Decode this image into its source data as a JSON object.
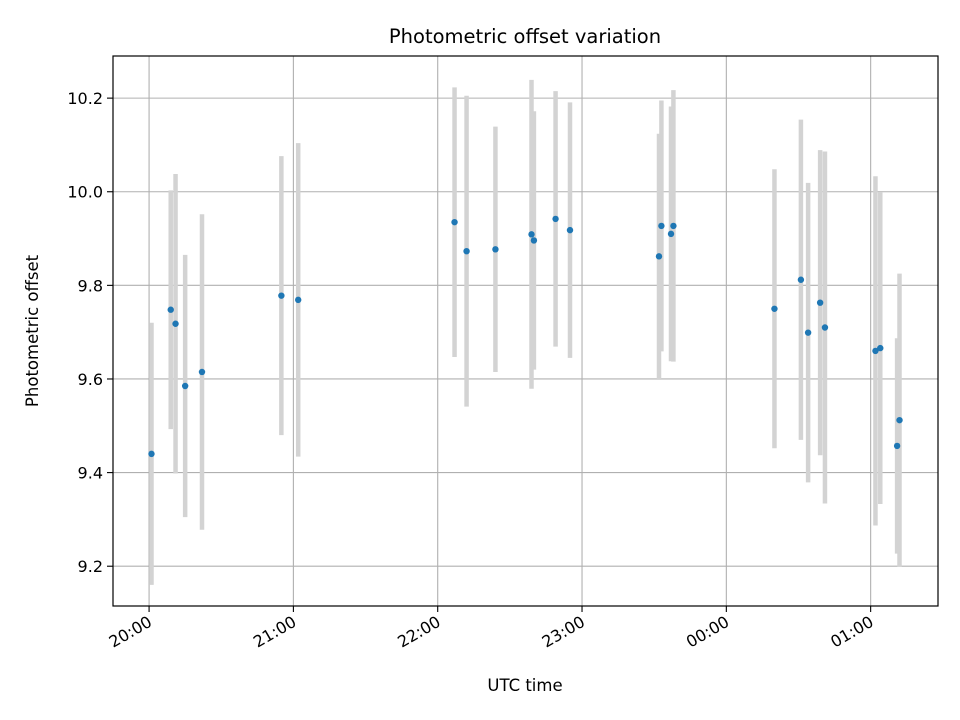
{
  "chart_data": {
    "type": "scatter",
    "title": "Photometric offset variation",
    "xlabel": "UTC time",
    "ylabel": "Photometric offset",
    "x_axis_kind": "time",
    "x_ticks": [
      "20:00",
      "21:00",
      "22:00",
      "23:00",
      "00:00",
      "01:00"
    ],
    "xlim": [
      "19:45",
      "01:28"
    ],
    "ylim": [
      9.115,
      10.29
    ],
    "y_ticks": [
      9.2,
      9.4,
      9.6,
      9.8,
      10.0,
      10.2
    ],
    "y_tick_labels": [
      "9.2",
      "9.4",
      "9.6",
      "9.8",
      "10.0",
      "10.2"
    ],
    "grid": true,
    "point_color": "#1f77b4",
    "errorbar_color": "#d3d3d3",
    "points": [
      {
        "t": "20:01",
        "y": 9.44,
        "err": 0.28
      },
      {
        "t": "20:09",
        "y": 9.748,
        "err": 0.255
      },
      {
        "t": "20:11",
        "y": 9.718,
        "err": 0.32
      },
      {
        "t": "20:15",
        "y": 9.585,
        "err": 0.28
      },
      {
        "t": "20:22",
        "y": 9.615,
        "err": 0.337
      },
      {
        "t": "20:55",
        "y": 9.778,
        "err": 0.298
      },
      {
        "t": "21:02",
        "y": 9.769,
        "err": 0.335
      },
      {
        "t": "22:07",
        "y": 9.935,
        "err": 0.288
      },
      {
        "t": "22:12",
        "y": 9.873,
        "err": 0.332
      },
      {
        "t": "22:24",
        "y": 9.877,
        "err": 0.262
      },
      {
        "t": "22:39",
        "y": 9.909,
        "err": 0.33
      },
      {
        "t": "22:40",
        "y": 9.896,
        "err": 0.276
      },
      {
        "t": "22:49",
        "y": 9.942,
        "err": 0.273
      },
      {
        "t": "22:55",
        "y": 9.918,
        "err": 0.273
      },
      {
        "t": "23:32",
        "y": 9.862,
        "err": 0.262
      },
      {
        "t": "23:33",
        "y": 9.927,
        "err": 0.268
      },
      {
        "t": "23:37",
        "y": 9.91,
        "err": 0.272
      },
      {
        "t": "23:38",
        "y": 9.927,
        "err": 0.29
      },
      {
        "t": "00:20",
        "y": 9.75,
        "err": 0.298
      },
      {
        "t": "00:31",
        "y": 9.812,
        "err": 0.342
      },
      {
        "t": "00:34",
        "y": 9.699,
        "err": 0.32
      },
      {
        "t": "00:39",
        "y": 9.763,
        "err": 0.326
      },
      {
        "t": "00:41",
        "y": 9.71,
        "err": 0.376
      },
      {
        "t": "01:02",
        "y": 9.66,
        "err": 0.373
      },
      {
        "t": "01:04",
        "y": 9.666,
        "err": 0.333
      },
      {
        "t": "01:11",
        "y": 9.457,
        "err": 0.23
      },
      {
        "t": "01:12",
        "y": 9.512,
        "err": 0.313
      }
    ]
  }
}
